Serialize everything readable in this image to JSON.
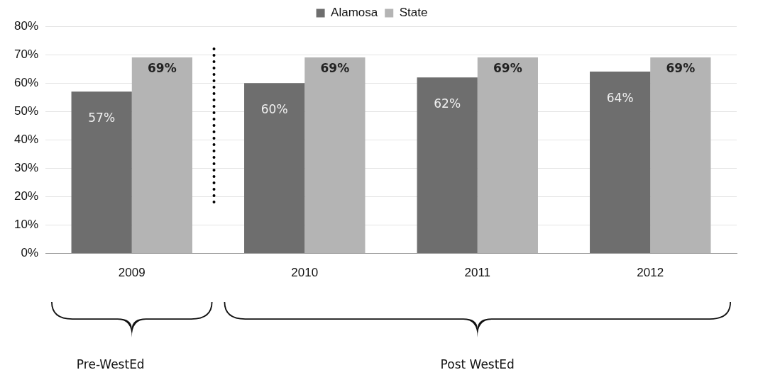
{
  "chart_data": {
    "type": "bar",
    "categories": [
      "2009",
      "2010",
      "2011",
      "2012"
    ],
    "series": [
      {
        "name": "Alamosa",
        "color": "#6e6e6e",
        "values": [
          57,
          60,
          62,
          64
        ],
        "value_labels": [
          "57%",
          "60%",
          "62%",
          "64%"
        ]
      },
      {
        "name": "State",
        "color": "#b4b4b4",
        "values": [
          69,
          69,
          69,
          69
        ],
        "value_labels": [
          "69%",
          "69%",
          "69%",
          "69%"
        ]
      }
    ],
    "ylim": [
      0,
      80
    ],
    "yticks": [
      {
        "value": 0,
        "label": "0%"
      },
      {
        "value": 10,
        "label": "10%"
      },
      {
        "value": 20,
        "label": "20%"
      },
      {
        "value": 30,
        "label": "30%"
      },
      {
        "value": 40,
        "label": "40%"
      },
      {
        "value": 50,
        "label": "50%"
      },
      {
        "value": 60,
        "label": "60%"
      },
      {
        "value": 70,
        "label": "70%"
      },
      {
        "value": 80,
        "label": "80%"
      }
    ],
    "grid": "y",
    "legend": "top",
    "annotations": [
      "Pre-WestEd",
      "Post WestEd"
    ]
  }
}
